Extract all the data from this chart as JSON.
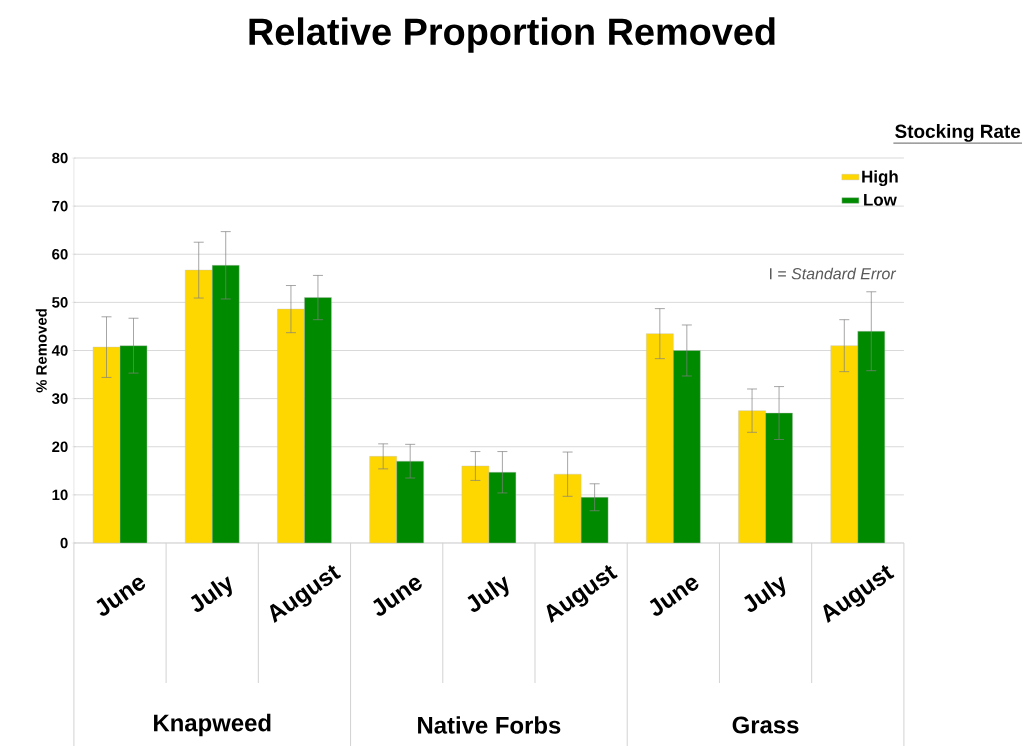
{
  "chart_data": {
    "type": "bar",
    "title": "Relative Proportion Removed",
    "ylabel": "% Removed",
    "legend_title": "Stocking Rate",
    "categories": [
      "June",
      "July",
      "August",
      "June",
      "July",
      "August",
      "June",
      "July",
      "August"
    ],
    "series": [
      {
        "name": "High",
        "color": "#ffd700",
        "values": [
          40.7,
          56.7,
          48.6,
          18,
          16,
          14.3,
          43.5,
          27.5,
          41
        ],
        "errors": [
          6.3,
          5.8,
          4.9,
          2.6,
          3,
          4.6,
          5.2,
          4.5,
          5.4
        ]
      },
      {
        "name": "Low",
        "color": "#008a00",
        "values": [
          41,
          57.7,
          51,
          17,
          14.7,
          9.5,
          40,
          27,
          44
        ],
        "errors": [
          5.7,
          7,
          4.6,
          3.5,
          4.3,
          2.8,
          5.3,
          5.5,
          8.2
        ]
      }
    ],
    "annotations": [
      "Knapweed",
      "Native Forbs",
      "Grass",
      "I = *Standard Error*"
    ],
    "ylim": [
      0,
      80
    ],
    "yticks": [
      0,
      10,
      20,
      30,
      40,
      50,
      60,
      70,
      80
    ],
    "grid": "y",
    "legend": "top right"
  }
}
